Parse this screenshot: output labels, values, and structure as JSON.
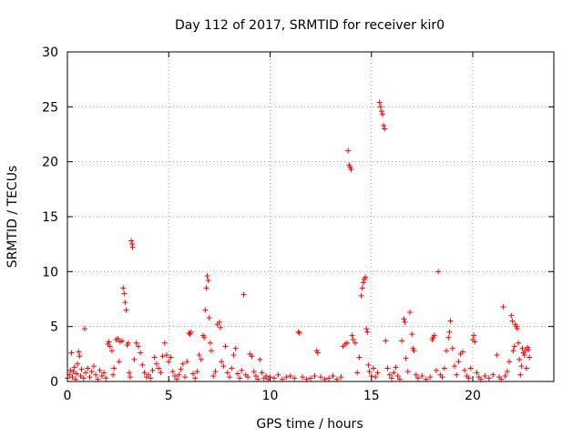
{
  "chart_data": {
    "type": "scatter",
    "title": "Day 112 of 2017, SRMTID for receiver kir0",
    "xlabel": "GPS time / hours",
    "ylabel": "SRMTID / TECUs",
    "xlim": [
      0,
      24
    ],
    "ylim": [
      0,
      30
    ],
    "x_ticks": [
      0,
      5,
      10,
      15,
      20
    ],
    "y_ticks": [
      0,
      5,
      10,
      15,
      20,
      25,
      30
    ],
    "x_tick_labels": [
      "0",
      "5",
      "10",
      "15",
      "20"
    ],
    "y_tick_labels": [
      "0",
      "5",
      "10",
      "15",
      "20",
      "25",
      "30"
    ],
    "grid": true,
    "legend": "none",
    "marker": "+",
    "colors": {
      "points": "#ff0000",
      "grid": "#a0a0a0",
      "axes": "#000000"
    },
    "series": [
      {
        "points": [
          [
            0.0,
            0.3
          ],
          [
            0.1,
            0.6
          ],
          [
            0.15,
            1.0
          ],
          [
            0.2,
            2.6
          ],
          [
            0.25,
            0.4
          ],
          [
            0.3,
            0.9
          ],
          [
            0.35,
            1.3
          ],
          [
            0.4,
            0.2
          ],
          [
            0.45,
            0.7
          ],
          [
            0.5,
            1.6
          ],
          [
            0.55,
            2.7
          ],
          [
            0.6,
            2.3
          ],
          [
            0.65,
            0.5
          ],
          [
            0.7,
            1.1
          ],
          [
            0.8,
            0.3
          ],
          [
            0.85,
            4.8
          ],
          [
            0.9,
            0.8
          ],
          [
            1.0,
            1.2
          ],
          [
            1.1,
            0.4
          ],
          [
            1.2,
            0.9
          ],
          [
            1.3,
            1.4
          ],
          [
            1.4,
            0.6
          ],
          [
            1.5,
            0.2
          ],
          [
            1.6,
            1.0
          ],
          [
            1.7,
            0.5
          ],
          [
            1.8,
            0.8
          ],
          [
            1.9,
            0.3
          ],
          [
            2.0,
            3.4
          ],
          [
            2.05,
            3.6
          ],
          [
            2.1,
            3.2
          ],
          [
            2.2,
            2.8
          ],
          [
            2.25,
            0.6
          ],
          [
            2.3,
            1.2
          ],
          [
            2.4,
            3.8
          ],
          [
            2.5,
            3.9
          ],
          [
            2.55,
            1.8
          ],
          [
            2.6,
            3.6
          ],
          [
            2.7,
            3.7
          ],
          [
            2.75,
            8.5
          ],
          [
            2.8,
            8.0
          ],
          [
            2.85,
            7.2
          ],
          [
            2.9,
            6.5
          ],
          [
            2.95,
            3.3
          ],
          [
            3.0,
            3.5
          ],
          [
            3.05,
            0.8
          ],
          [
            3.1,
            0.4
          ],
          [
            3.15,
            12.8
          ],
          [
            3.2,
            12.5
          ],
          [
            3.22,
            12.2
          ],
          [
            3.3,
            2.0
          ],
          [
            3.4,
            3.5
          ],
          [
            3.5,
            3.2
          ],
          [
            3.6,
            2.6
          ],
          [
            3.7,
            1.5
          ],
          [
            3.8,
            0.8
          ],
          [
            3.9,
            0.4
          ],
          [
            4.0,
            0.6
          ],
          [
            4.1,
            0.3
          ],
          [
            4.2,
            1.0
          ],
          [
            4.3,
            2.2
          ],
          [
            4.4,
            1.6
          ],
          [
            4.5,
            1.2
          ],
          [
            4.6,
            0.8
          ],
          [
            4.7,
            2.3
          ],
          [
            4.8,
            3.5
          ],
          [
            4.9,
            2.4
          ],
          [
            5.0,
            1.8
          ],
          [
            5.1,
            2.2
          ],
          [
            5.2,
            0.9
          ],
          [
            5.3,
            0.5
          ],
          [
            5.4,
            0.2
          ],
          [
            5.5,
            0.6
          ],
          [
            5.6,
            1.1
          ],
          [
            5.7,
            1.6
          ],
          [
            5.8,
            0.4
          ],
          [
            5.9,
            1.8
          ],
          [
            6.0,
            4.4
          ],
          [
            6.05,
            4.3
          ],
          [
            6.1,
            4.5
          ],
          [
            6.2,
            0.7
          ],
          [
            6.3,
            0.3
          ],
          [
            6.4,
            0.9
          ],
          [
            6.5,
            2.4
          ],
          [
            6.6,
            2.0
          ],
          [
            6.7,
            4.2
          ],
          [
            6.75,
            4.0
          ],
          [
            6.8,
            6.5
          ],
          [
            6.85,
            8.5
          ],
          [
            6.9,
            9.6
          ],
          [
            6.95,
            9.2
          ],
          [
            7.0,
            5.8
          ],
          [
            7.05,
            3.5
          ],
          [
            7.1,
            2.8
          ],
          [
            7.2,
            0.5
          ],
          [
            7.3,
            0.9
          ],
          [
            7.4,
            5.2
          ],
          [
            7.5,
            5.4
          ],
          [
            7.55,
            4.9
          ],
          [
            7.6,
            1.8
          ],
          [
            7.7,
            1.4
          ],
          [
            7.8,
            3.2
          ],
          [
            7.9,
            0.8
          ],
          [
            8.0,
            0.4
          ],
          [
            8.1,
            1.2
          ],
          [
            8.2,
            2.4
          ],
          [
            8.3,
            3.0
          ],
          [
            8.4,
            0.7
          ],
          [
            8.5,
            0.3
          ],
          [
            8.6,
            1.0
          ],
          [
            8.7,
            7.9
          ],
          [
            8.8,
            0.6
          ],
          [
            8.9,
            0.4
          ],
          [
            9.0,
            2.5
          ],
          [
            9.1,
            2.3
          ],
          [
            9.2,
            0.9
          ],
          [
            9.3,
            0.5
          ],
          [
            9.4,
            0.2
          ],
          [
            9.5,
            2.0
          ],
          [
            9.6,
            0.8
          ],
          [
            9.7,
            0.3
          ],
          [
            9.8,
            0.5
          ],
          [
            9.9,
            0.2
          ],
          [
            10.0,
            0.4
          ],
          [
            10.2,
            0.3
          ],
          [
            10.4,
            0.6
          ],
          [
            10.6,
            0.2
          ],
          [
            10.8,
            0.4
          ],
          [
            11.0,
            0.5
          ],
          [
            11.2,
            0.3
          ],
          [
            11.4,
            4.5
          ],
          [
            11.45,
            4.4
          ],
          [
            11.6,
            0.4
          ],
          [
            11.8,
            0.2
          ],
          [
            12.0,
            0.3
          ],
          [
            12.2,
            0.5
          ],
          [
            12.3,
            2.8
          ],
          [
            12.35,
            2.6
          ],
          [
            12.5,
            0.4
          ],
          [
            12.7,
            0.2
          ],
          [
            12.9,
            0.3
          ],
          [
            13.1,
            0.5
          ],
          [
            13.3,
            0.2
          ],
          [
            13.5,
            0.4
          ],
          [
            13.6,
            3.2
          ],
          [
            13.7,
            3.4
          ],
          [
            13.8,
            3.5
          ],
          [
            13.85,
            21.0
          ],
          [
            13.9,
            19.7
          ],
          [
            13.95,
            19.5
          ],
          [
            14.0,
            19.3
          ],
          [
            14.05,
            4.2
          ],
          [
            14.1,
            3.8
          ],
          [
            14.2,
            3.5
          ],
          [
            14.3,
            0.8
          ],
          [
            14.4,
            2.2
          ],
          [
            14.5,
            7.8
          ],
          [
            14.55,
            8.5
          ],
          [
            14.6,
            9.0
          ],
          [
            14.65,
            9.3
          ],
          [
            14.7,
            9.5
          ],
          [
            14.75,
            4.8
          ],
          [
            14.8,
            4.5
          ],
          [
            14.85,
            1.5
          ],
          [
            14.9,
            0.9
          ],
          [
            15.0,
            0.5
          ],
          [
            15.1,
            1.2
          ],
          [
            15.2,
            0.4
          ],
          [
            15.3,
            0.8
          ],
          [
            15.4,
            25.4
          ],
          [
            15.45,
            25.0
          ],
          [
            15.5,
            24.6
          ],
          [
            15.55,
            24.3
          ],
          [
            15.6,
            23.3
          ],
          [
            15.65,
            23.0
          ],
          [
            15.7,
            3.7
          ],
          [
            15.8,
            1.2
          ],
          [
            15.9,
            0.6
          ],
          [
            16.0,
            0.3
          ],
          [
            16.1,
            0.8
          ],
          [
            16.2,
            1.3
          ],
          [
            16.3,
            0.5
          ],
          [
            16.4,
            0.2
          ],
          [
            16.5,
            3.7
          ],
          [
            16.6,
            5.7
          ],
          [
            16.65,
            5.4
          ],
          [
            16.7,
            2.1
          ],
          [
            16.8,
            0.9
          ],
          [
            16.9,
            6.3
          ],
          [
            17.0,
            4.3
          ],
          [
            17.05,
            3.0
          ],
          [
            17.1,
            2.8
          ],
          [
            17.2,
            0.6
          ],
          [
            17.3,
            0.3
          ],
          [
            17.5,
            0.5
          ],
          [
            17.7,
            0.2
          ],
          [
            17.9,
            0.4
          ],
          [
            18.0,
            3.8
          ],
          [
            18.05,
            4.0
          ],
          [
            18.1,
            4.2
          ],
          [
            18.2,
            1.0
          ],
          [
            18.3,
            10.0
          ],
          [
            18.4,
            0.6
          ],
          [
            18.5,
            0.4
          ],
          [
            18.6,
            1.2
          ],
          [
            18.7,
            2.8
          ],
          [
            18.8,
            4.0
          ],
          [
            18.85,
            4.5
          ],
          [
            18.9,
            5.5
          ],
          [
            19.0,
            3.0
          ],
          [
            19.1,
            1.4
          ],
          [
            19.2,
            0.6
          ],
          [
            19.3,
            1.8
          ],
          [
            19.4,
            2.5
          ],
          [
            19.5,
            2.7
          ],
          [
            19.6,
            1.0
          ],
          [
            19.7,
            0.5
          ],
          [
            19.8,
            0.3
          ],
          [
            19.9,
            1.2
          ],
          [
            20.0,
            3.8
          ],
          [
            20.05,
            4.2
          ],
          [
            20.1,
            3.6
          ],
          [
            20.2,
            0.8
          ],
          [
            20.3,
            0.4
          ],
          [
            20.4,
            0.2
          ],
          [
            20.6,
            0.5
          ],
          [
            20.8,
            0.3
          ],
          [
            21.0,
            0.6
          ],
          [
            21.2,
            2.4
          ],
          [
            21.3,
            0.4
          ],
          [
            21.4,
            0.2
          ],
          [
            21.5,
            6.8
          ],
          [
            21.6,
            0.5
          ],
          [
            21.7,
            0.9
          ],
          [
            21.8,
            1.8
          ],
          [
            21.9,
            6.0
          ],
          [
            21.95,
            5.5
          ],
          [
            22.0,
            2.8
          ],
          [
            22.05,
            3.2
          ],
          [
            22.1,
            5.2
          ],
          [
            22.15,
            5.0
          ],
          [
            22.2,
            4.8
          ],
          [
            22.25,
            3.5
          ],
          [
            22.3,
            2.0
          ],
          [
            22.35,
            0.6
          ],
          [
            22.4,
            1.4
          ],
          [
            22.45,
            3.0
          ],
          [
            22.5,
            2.6
          ],
          [
            22.55,
            2.4
          ],
          [
            22.6,
            2.8
          ],
          [
            22.65,
            1.2
          ],
          [
            22.7,
            3.1
          ],
          [
            22.75,
            2.9
          ],
          [
            22.8,
            2.2
          ]
        ]
      }
    ]
  }
}
